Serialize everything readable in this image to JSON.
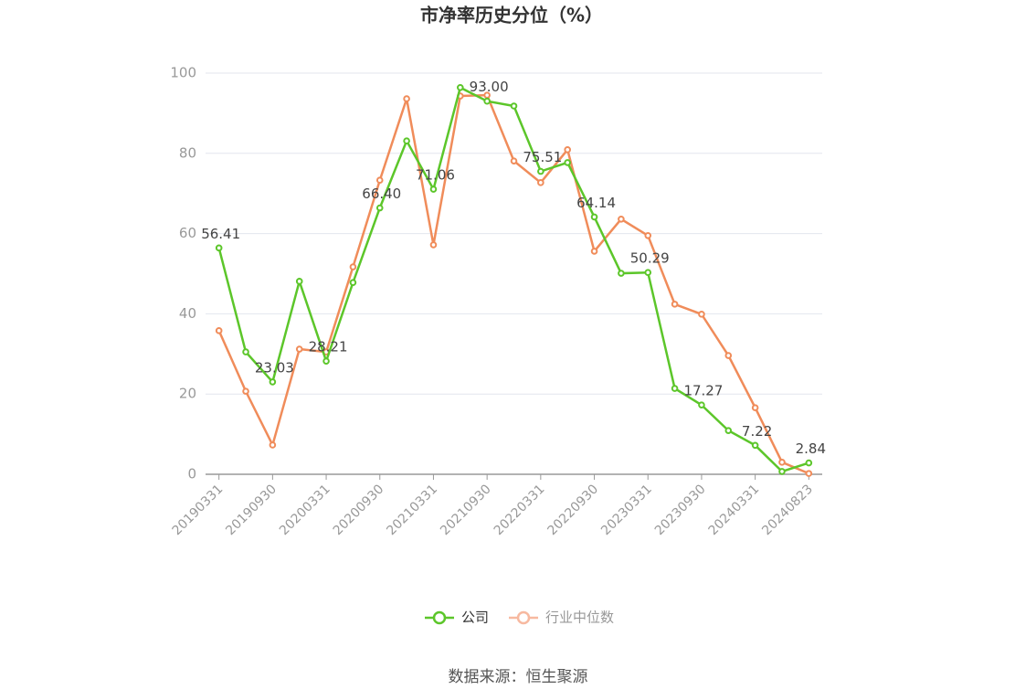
{
  "chart_data": {
    "type": "line",
    "title": "市净率历史分位（%）",
    "source": "数据来源：恒生聚源",
    "categories": [
      "20190331",
      null,
      "20190930",
      null,
      "20200331",
      null,
      "20200930",
      null,
      "20210331",
      null,
      "20210930",
      null,
      "20220331",
      null,
      "20220930",
      null,
      "20230331",
      null,
      "20230930",
      null,
      "20240331",
      null,
      "20240823"
    ],
    "series": [
      {
        "name": "公司",
        "color": "#5cc62a",
        "values": [
          56.41,
          30.5,
          23.03,
          48.1,
          28.21,
          47.8,
          66.4,
          83.1,
          71.06,
          96.4,
          93.0,
          91.8,
          75.51,
          77.7,
          64.14,
          50.1,
          50.29,
          21.4,
          17.27,
          10.9,
          7.22,
          0.7,
          2.84
        ],
        "value_labels": [
          "56.41",
          null,
          "23.03",
          null,
          "28.21",
          null,
          "66.40",
          null,
          "71.06",
          null,
          "93.00",
          null,
          "75.51",
          null,
          "64.14",
          null,
          "50.29",
          null,
          "17.27",
          null,
          "7.22",
          null,
          "2.84"
        ]
      },
      {
        "name": "行业中位数",
        "color": "#f08c5a",
        "values": [
          35.8,
          20.7,
          7.3,
          31.2,
          30.5,
          51.7,
          73.3,
          93.6,
          57.2,
          94.3,
          94.5,
          78.1,
          72.7,
          80.9,
          55.6,
          63.6,
          59.5,
          42.4,
          39.9,
          29.6,
          16.6,
          3.0,
          0.2
        ]
      }
    ],
    "ylim": [
      0,
      100
    ],
    "yticks": [
      0,
      20,
      40,
      60,
      80,
      100
    ],
    "grid": true
  }
}
